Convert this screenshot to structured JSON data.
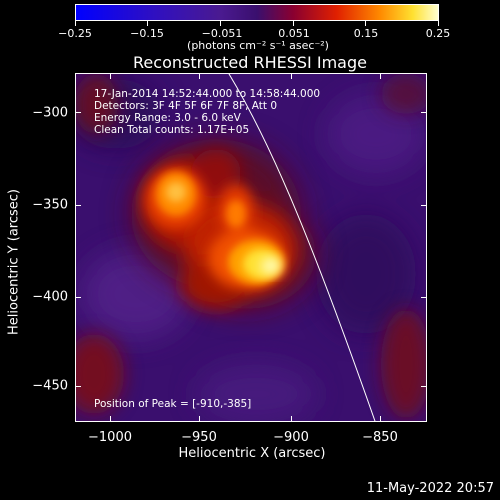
{
  "colorbar": {
    "tick_labels": [
      "−0.25",
      "−0.15",
      "−0.051",
      "0.051",
      "0.15",
      "0.25"
    ],
    "units": "(photons cm⁻² s⁻¹ asec⁻²)"
  },
  "title": "Reconstructed RHESSI Image",
  "annotations": {
    "time": "17-Jan-2014 14:52:44.000 to 14:58:44.000",
    "detectors": "Detectors: 3F 4F 5F 6F 7F 8F, Att 0",
    "energy": "Energy Range: 3.0 - 6.0 keV",
    "clean": "Clean    Total counts: 1.17E+05",
    "peak": "Position of Peak = [-910,-385]"
  },
  "axes": {
    "xlabel": "Heliocentric X (arcsec)",
    "ylabel": "Heliocentric Y (arcsec)",
    "xticks": [
      "−1000",
      "−950",
      "−900",
      "−850"
    ],
    "yticks": [
      "−300",
      "−350",
      "−400",
      "−450"
    ]
  },
  "footer": "11-May-2022 20:57",
  "colors": {
    "background": "#000000",
    "map_low": "#3a0f6e",
    "map_high": "#ffffd0"
  }
}
